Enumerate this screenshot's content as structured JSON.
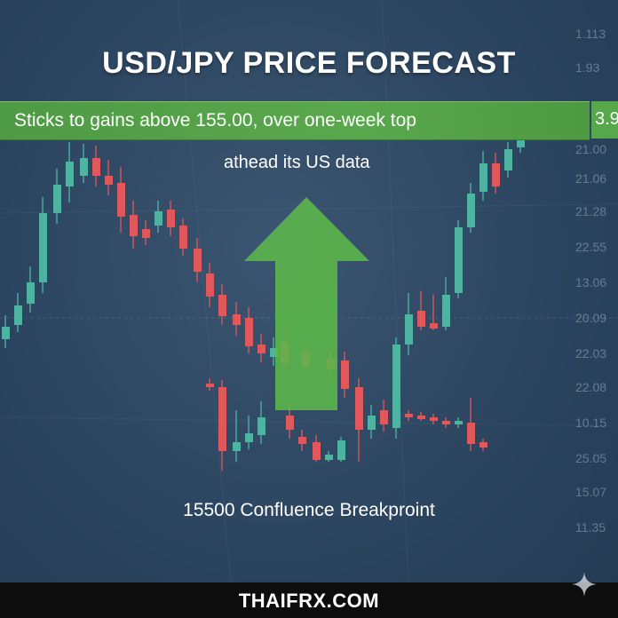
{
  "title": "USD/JPY PRICE FORECAST",
  "banner": {
    "text": "Sticks to gains above 155.00, over one-week top",
    "tail": "3.9"
  },
  "subtitle": "athead its US data",
  "caption": "15500 Confluence Breakproint",
  "footer": {
    "site": "THAIFRX.COM"
  },
  "axis_labels": [
    "1.113",
    "1.93",
    "21.00",
    "21.06",
    "21.28",
    "22.55",
    "13.06",
    "20.09",
    "22.03",
    "22.08",
    "10.15",
    "25.05",
    "15.07",
    "11.35"
  ],
  "colors": {
    "bull": "#4fb3a2",
    "bear": "#e0575c",
    "banner": "#57a64b",
    "arrow": "#5cb84a",
    "footer": "#0d0d0d"
  },
  "icons": {
    "arrow": "up-arrow-icon",
    "watermark": "sparkle-icon"
  }
}
